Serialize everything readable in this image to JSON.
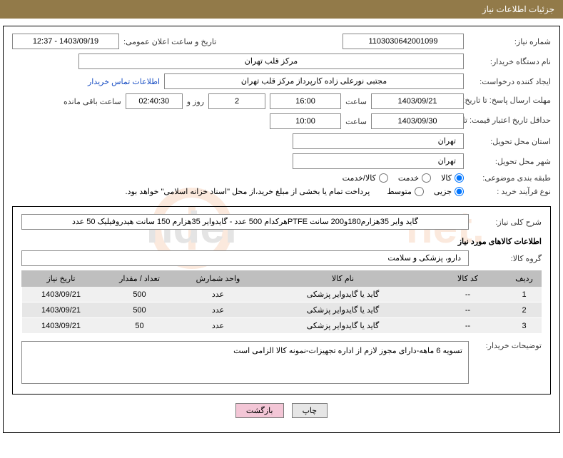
{
  "header": {
    "title": "جزئیات اطلاعات نیاز"
  },
  "fields": {
    "need_no_label": "شماره نیاز:",
    "need_no": "1103030642001099",
    "announce_label": "تاریخ و ساعت اعلان عمومی:",
    "announce": "1403/09/19 - 12:37",
    "buyer_org_label": "نام دستگاه خریدار:",
    "buyer_org": "مرکز قلب تهران",
    "requester_label": "ایجاد کننده درخواست:",
    "requester": "مجتبی نورعلی زاده کارپرداز مرکز قلب تهران",
    "contact_link": "اطلاعات تماس خریدار",
    "deadline_label": "مهلت ارسال پاسخ: تا\nتاریخ:",
    "deadline_date": "1403/09/21",
    "hour_label": "ساعت",
    "deadline_time": "16:00",
    "days_remain": "2",
    "days_and": "روز و",
    "time_remain": "02:40:30",
    "time_remain_label": "ساعت باقی مانده",
    "validity_label": "حداقل تاریخ اعتبار قیمت: تا\nتاریخ:",
    "validity_date": "1403/09/30",
    "validity_time": "10:00",
    "province_label": "استان محل تحویل:",
    "province": "تهران",
    "city_label": "شهر محل تحویل:",
    "city": "تهران",
    "category_label": "طبقه بندی موضوعی:",
    "radio_kala": "کالا",
    "radio_khedmat": "خدمت",
    "radio_kalakhedmat": "کالا/خدمت",
    "process_label": "نوع فرآیند خرید :",
    "radio_jozei": "جزیی",
    "radio_motavaset": "متوسط",
    "process_note": "پرداخت تمام یا بخشی از مبلغ خرید،از محل \"اسناد خزانه اسلامی\" خواهد بود.",
    "desc_label": "شرح کلی نیاز:",
    "desc": "گاید وایر 35هزارم180و200 سانت PTFEهرکدام 500 عدد - گایدوایر 35هزارم 150 سانت هیدروفیلیک 50 عدد",
    "goods_info_title": "اطلاعات کالاهای مورد نیاز",
    "group_label": "گروه کالا:",
    "group": "دارو، پزشکی و سلامت",
    "buyer_notes_label": "توضیحات خریدار:",
    "buyer_notes": "تسویه 6 ماهه-دارای مجوز لازم از اداره تجهیزات-نمونه کالا الزامی است"
  },
  "table": {
    "headers": {
      "row": "ردیف",
      "code": "کد کالا",
      "name": "نام کالا",
      "unit": "واحد شمارش",
      "qty": "تعداد / مقدار",
      "date": "تاریخ نیاز"
    },
    "rows": [
      {
        "n": "1",
        "code": "--",
        "name": "گاید یا گایدوایر پزشکی",
        "unit": "عدد",
        "qty": "500",
        "date": "1403/09/21"
      },
      {
        "n": "2",
        "code": "--",
        "name": "گاید یا گایدوایر پزشکی",
        "unit": "عدد",
        "qty": "500",
        "date": "1403/09/21"
      },
      {
        "n": "3",
        "code": "--",
        "name": "گاید یا گایدوایر پزشکی",
        "unit": "عدد",
        "qty": "50",
        "date": "1403/09/21"
      }
    ]
  },
  "buttons": {
    "print": "چاپ",
    "back": "بازگشت"
  },
  "colors": {
    "header_bg": "#927a49",
    "border": "#000000",
    "th_bg": "#bfbfbf",
    "td_bg": "#f0f0f0",
    "td_alt_bg": "#e6e6e6",
    "link": "#1a4fc4",
    "btn_back_bg": "#f3c6d6"
  }
}
